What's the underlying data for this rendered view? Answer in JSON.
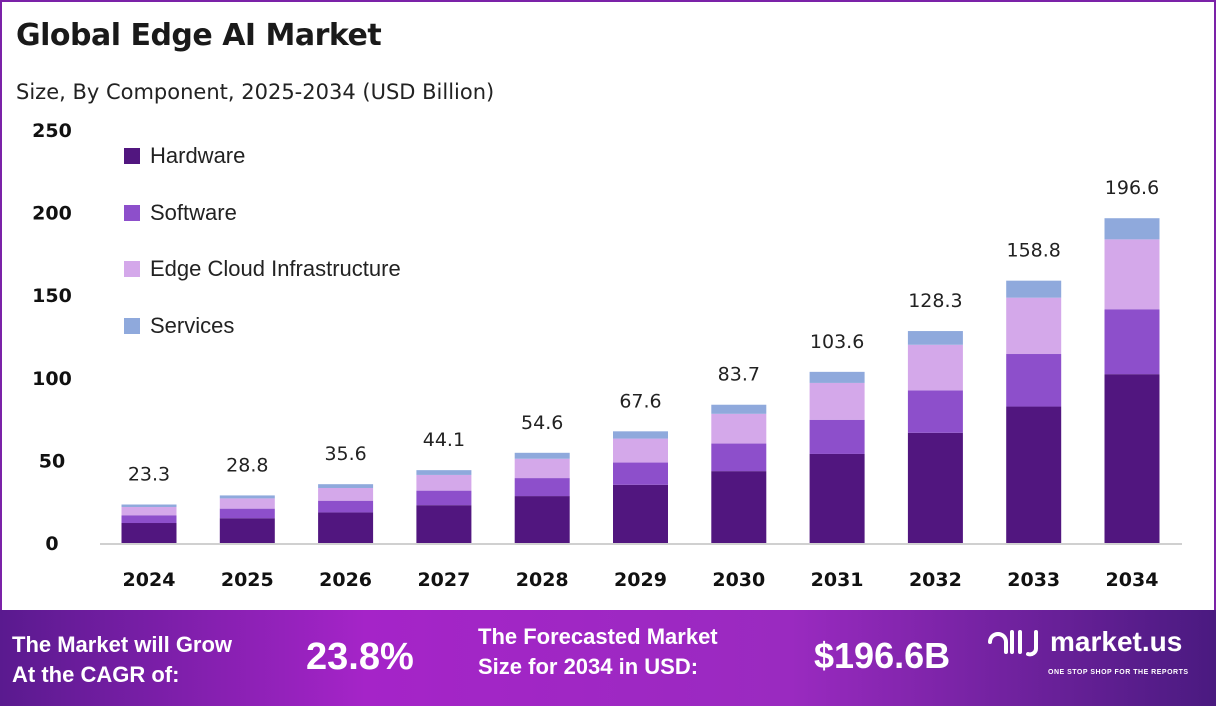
{
  "title": "Global Edge AI Market",
  "subtitle": "Size, By Component, 2025-2034 (USD Billion)",
  "chart_data": {
    "type": "bar",
    "stacked": true,
    "categories": [
      "2024",
      "2025",
      "2026",
      "2027",
      "2028",
      "2029",
      "2030",
      "2031",
      "2032",
      "2033",
      "2034"
    ],
    "series": [
      {
        "name": "Hardware",
        "color": "#51167f",
        "values": [
          12.1,
          15.0,
          18.5,
          22.9,
          28.4,
          35.2,
          43.5,
          53.9,
          66.7,
          82.6,
          102.2
        ]
      },
      {
        "name": "Software",
        "color": "#8d4fcb",
        "values": [
          4.7,
          5.8,
          7.1,
          8.8,
          10.9,
          13.5,
          16.7,
          20.7,
          25.7,
          31.8,
          39.3
        ]
      },
      {
        "name": "Edge Cloud Infrastructure",
        "color": "#d4a8ea",
        "values": [
          5.0,
          6.2,
          7.7,
          9.5,
          11.7,
          14.5,
          18.0,
          22.3,
          27.6,
          34.1,
          42.3
        ]
      },
      {
        "name": "Services",
        "color": "#8fa9dc",
        "values": [
          1.5,
          1.8,
          2.3,
          2.9,
          3.6,
          4.4,
          5.5,
          6.7,
          8.3,
          10.3,
          12.8
        ]
      }
    ],
    "totals": [
      "23.3",
      "28.8",
      "35.6",
      "44.1",
      "54.6",
      "67.6",
      "83.7",
      "103.6",
      "128.3",
      "158.8",
      "196.6"
    ],
    "yticks": [
      "0",
      "50",
      "100",
      "150",
      "200",
      "250"
    ],
    "ylim": [
      0,
      250
    ],
    "grid": false,
    "legend": "top-left"
  },
  "footer": {
    "cagr_label_1": "The Market will Grow",
    "cagr_label_2": "At the CAGR of:",
    "cagr_value": "23.8%",
    "forecast_label_1": "The Forecasted Market",
    "forecast_label_2": "Size for 2034 in USD:",
    "forecast_value": "$196.6B",
    "brand": "market.us",
    "tagline": "ONE STOP SHOP FOR THE REPORTS"
  }
}
